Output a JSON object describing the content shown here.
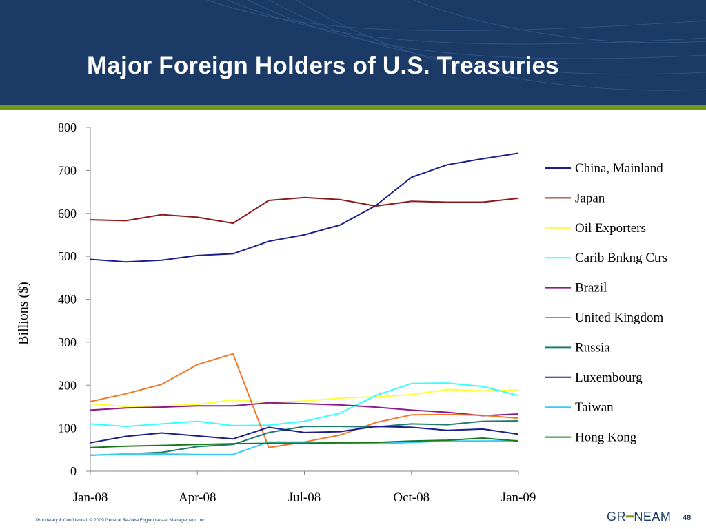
{
  "slide": {
    "title": "Major Foreign Holders of U.S. Treasuries",
    "footer": "Proprietary & Confidential. © 2009 General Re-New England Asset Management, Inc.",
    "page_number": "48",
    "logo": {
      "left": "GR",
      "right": "NEAM",
      "dash_color": "#6f9a1e"
    },
    "colors": {
      "header": "#1b3a66",
      "accent": "#6f9a1e"
    }
  },
  "chart_data": {
    "type": "line",
    "title": "",
    "xlabel": "",
    "ylabel": "Billions ($)",
    "ylim": [
      0,
      800
    ],
    "yticks": [
      0,
      100,
      200,
      300,
      400,
      500,
      600,
      700,
      800
    ],
    "x_tick_labels": [
      "Jan-08",
      "Apr-08",
      "Jul-08",
      "Oct-08",
      "Jan-09"
    ],
    "x_tick_index": [
      0,
      3,
      6,
      9,
      12
    ],
    "categories": [
      "Jan-08",
      "Feb-08",
      "Mar-08",
      "Apr-08",
      "May-08",
      "Jun-08",
      "Jul-08",
      "Aug-08",
      "Sep-08",
      "Oct-08",
      "Nov-08",
      "Dec-08",
      "Jan-09"
    ],
    "legend_position": "right",
    "grid": false,
    "series": [
      {
        "name": "China, Mainland",
        "color": "#1a1f8c",
        "values": [
          493,
          487,
          491,
          502,
          506,
          535,
          550,
          573,
          618,
          684,
          713,
          727,
          740
        ]
      },
      {
        "name": "Japan",
        "color": "#8b1a1a",
        "values": [
          585,
          583,
          597,
          591,
          577,
          630,
          637,
          632,
          617,
          628,
          626,
          626,
          635
        ]
      },
      {
        "name": "Oil Exporters",
        "color": "#ffff33",
        "values": [
          157,
          150,
          152,
          155,
          166,
          160,
          163,
          170,
          173,
          178,
          190,
          187,
          189
        ]
      },
      {
        "name": "Carib Bnkng Ctrs",
        "color": "#33ffff",
        "values": [
          110,
          104,
          110,
          116,
          106,
          107,
          116,
          135,
          176,
          204,
          205,
          197,
          176
        ]
      },
      {
        "name": "Brazil",
        "color": "#8b1a8b",
        "values": [
          142,
          147,
          149,
          152,
          152,
          159,
          157,
          154,
          149,
          142,
          137,
          129,
          133
        ]
      },
      {
        "name": "United Kingdom",
        "color": "#f07828",
        "values": [
          162,
          180,
          202,
          248,
          273,
          55,
          68,
          84,
          113,
          131,
          132,
          130,
          123
        ]
      },
      {
        "name": "Russia",
        "color": "#1f7a6e",
        "values": [
          37,
          40,
          44,
          57,
          62,
          90,
          104,
          104,
          103,
          110,
          108,
          116,
          117
        ]
      },
      {
        "name": "Luxembourg",
        "color": "#1a1f8c",
        "values": [
          66,
          81,
          89,
          82,
          75,
          102,
          90,
          92,
          104,
          102,
          95,
          98,
          86
        ]
      },
      {
        "name": "Taiwan",
        "color": "#33ccff",
        "values": [
          37,
          40,
          40,
          39,
          39,
          68,
          68,
          65,
          64,
          67,
          70,
          70,
          71
        ]
      },
      {
        "name": "Hong Kong",
        "color": "#1a7a1a",
        "values": [
          55,
          58,
          60,
          62,
          64,
          65,
          65,
          66,
          67,
          70,
          72,
          77,
          70
        ]
      }
    ]
  }
}
